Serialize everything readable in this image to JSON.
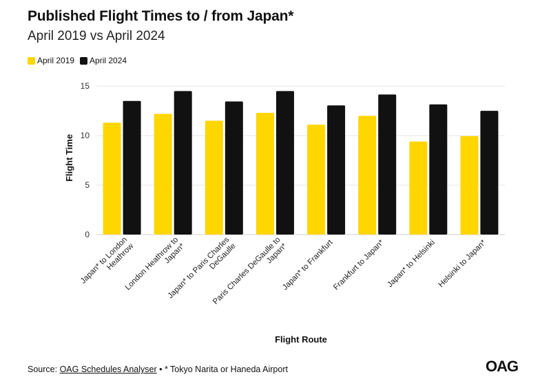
{
  "header": {
    "title": "Published Flight Times to / from Japan*",
    "subtitle": "April 2019 vs April 2024"
  },
  "footer": {
    "source_label": "Source: ",
    "source_link": "OAG Schedules Analyser",
    "separator": " • ",
    "note": "* Tokyo Narita or Haneda Airport",
    "logo": "OAG"
  },
  "colors": {
    "april_2019": "#FFD600",
    "april_2024": "#111111",
    "grid": "#e6e6e6",
    "axis": "#cfcfcf"
  },
  "chart_data": {
    "type": "bar",
    "xlabel": "Flight Route",
    "ylabel": "Flight Time",
    "ylim": [
      0,
      15.5
    ],
    "yticks": [
      0,
      5,
      10,
      15
    ],
    "grid": true,
    "legend_position": "top-left",
    "categories": [
      [
        "Japan* to London",
        "Heathrow"
      ],
      [
        "London Heathrow to",
        "Japan*"
      ],
      [
        "Japan* to Paris Charles",
        "DeGaulle"
      ],
      [
        "Paris Charles DeGaulle to",
        "Japan*"
      ],
      [
        "Japan* to Frankfurt"
      ],
      [
        "Frankfurt to Japan*"
      ],
      [
        "Japan* to Helsinki"
      ],
      [
        "Helsinki to Japan*"
      ]
    ],
    "series": [
      {
        "name": "April 2019",
        "values": [
          11.3,
          12.2,
          11.5,
          12.3,
          11.1,
          12.0,
          9.4,
          9.95
        ]
      },
      {
        "name": "April 2024",
        "values": [
          13.5,
          14.5,
          13.45,
          14.5,
          13.05,
          14.15,
          13.15,
          12.5
        ]
      }
    ]
  }
}
